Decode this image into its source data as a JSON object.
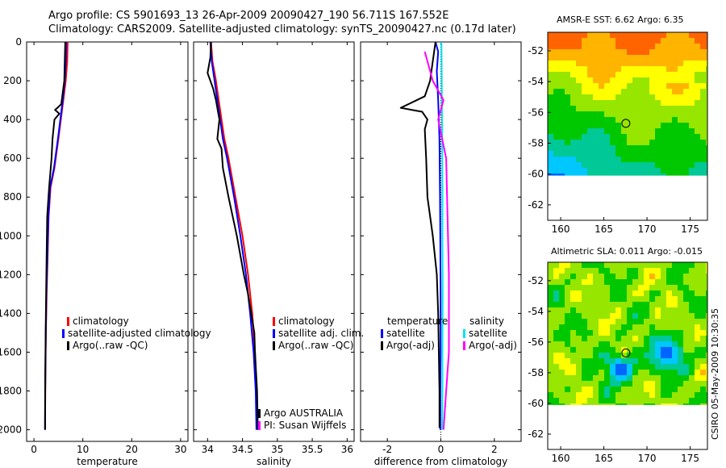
{
  "header": {
    "line1": "Argo profile: CS 5901693_13 26-Apr-2009 20090427_190 56.711S 167.552E",
    "line2": "Climatology: CARS2009. Satellite-adjusted climatology: synTS_20090427.nc (0.17d later)"
  },
  "side_label": "CSIRO 05-May-2009 10:30:35",
  "colors": {
    "climatology": "#ff0000",
    "satellite": "#0000ff",
    "argo": "#000000",
    "satellite_sal": "#00e5ee",
    "argo_sal": "#ff00ff"
  },
  "chart_data": [
    {
      "type": "line",
      "xlabel": "temperature",
      "xlim": [
        -1.5,
        31.5
      ],
      "ylim": [
        2060,
        0
      ],
      "xticks": [
        0,
        10,
        20,
        30
      ],
      "yticks": [
        0,
        200,
        400,
        600,
        800,
        1000,
        1200,
        1400,
        1600,
        1800,
        2000
      ],
      "y_reversed": true,
      "legend": {
        "position": "lower-right",
        "entries": [
          "climatology",
          "satellite-adjusted climatology",
          "Argo(..raw -QC)"
        ]
      },
      "series": [
        {
          "name": "climatology",
          "color": "climatology",
          "x": [
            6.9,
            6.8,
            6.5,
            6.0,
            5.0,
            4.2,
            3.4,
            3.0,
            2.8,
            2.6,
            2.45,
            2.35,
            2.3,
            2.28
          ],
          "y": [
            0,
            100,
            200,
            300,
            500,
            650,
            750,
            900,
            1100,
            1300,
            1500,
            1700,
            1900,
            2000
          ]
        },
        {
          "name": "satellite-adjusted climatology",
          "color": "satellite",
          "x": [
            6.6,
            6.5,
            6.3,
            5.9,
            4.9,
            4.1,
            3.3,
            2.95,
            2.75,
            2.55,
            2.42,
            2.33,
            2.28,
            2.27
          ],
          "y": [
            0,
            100,
            200,
            300,
            500,
            650,
            750,
            900,
            1100,
            1300,
            1500,
            1700,
            1900,
            2000
          ]
        },
        {
          "name": "Argo(..raw -QC)",
          "color": "argo",
          "x": [
            6.4,
            6.3,
            6.2,
            5.8,
            5.6,
            4.8,
            4.3,
            5.2,
            4.2,
            3.8,
            3.6,
            3.1,
            2.7,
            2.6,
            2.5,
            2.4,
            2.3,
            2.28
          ],
          "y": [
            0,
            100,
            200,
            280,
            320,
            340,
            350,
            370,
            400,
            500,
            600,
            750,
            900,
            1100,
            1300,
            1500,
            1800,
            2000
          ]
        }
      ]
    },
    {
      "type": "line",
      "xlabel": "salinity",
      "xlim": [
        33.8,
        36.1
      ],
      "ylim": [
        2060,
        0
      ],
      "xticks": [
        34,
        34.5,
        35,
        35.5,
        36
      ],
      "y_reversed": true,
      "legend": {
        "position": "lower-right",
        "entries": [
          "climatology",
          "satellite adj. clim.",
          "Argo(..raw -QC)"
        ]
      },
      "annotations": [
        "Argo AUSTRALIA",
        "PI: Susan Wijffels"
      ],
      "series": [
        {
          "name": "climatology",
          "color": "climatology",
          "x": [
            34.05,
            34.07,
            34.12,
            34.16,
            34.2,
            34.24,
            34.3,
            34.4,
            34.5,
            34.58,
            34.64,
            34.68,
            34.7,
            34.71
          ],
          "y": [
            0,
            100,
            200,
            300,
            400,
            500,
            600,
            800,
            1000,
            1200,
            1400,
            1600,
            1800,
            2000
          ]
        },
        {
          "name": "satellite adj. clim.",
          "color": "satellite",
          "x": [
            34.04,
            34.06,
            34.1,
            34.14,
            34.18,
            34.22,
            34.28,
            34.38,
            34.47,
            34.55,
            34.61,
            34.66,
            34.69,
            34.7
          ],
          "y": [
            0,
            100,
            200,
            300,
            400,
            500,
            600,
            800,
            1000,
            1200,
            1400,
            1600,
            1800,
            2000
          ]
        },
        {
          "name": "Argo(..raw -QC)",
          "color": "argo",
          "x": [
            34.05,
            34.04,
            34.0,
            34.08,
            34.12,
            34.17,
            34.14,
            34.2,
            34.22,
            34.3,
            34.42,
            34.52,
            34.58,
            34.67,
            34.68,
            34.71,
            34.72
          ],
          "y": [
            0,
            80,
            160,
            240,
            300,
            400,
            500,
            550,
            650,
            800,
            1000,
            1200,
            1300,
            1500,
            1600,
            1800,
            2000
          ]
        }
      ]
    },
    {
      "type": "line",
      "xlabel": "difference from climatology",
      "xlim": [
        -3.0,
        3.0
      ],
      "ylim": [
        2060,
        0
      ],
      "xticks": [
        -2,
        0,
        2
      ],
      "y_reversed": true,
      "reference_line_x": 0,
      "legend": {
        "position": "lower-right",
        "entries": [
          "temperature",
          "satellite",
          "Argo(-adj)",
          "salinity",
          "satellite",
          "Argo(-adj)"
        ]
      },
      "series": [
        {
          "name": "satellite (temperature)",
          "color": "satellite",
          "x": [
            -0.2,
            -0.1,
            -0.15,
            -0.1,
            -0.05,
            -0.03,
            -0.02,
            -0.01,
            -0.01,
            -0.02,
            -0.02
          ],
          "y": [
            0,
            50,
            150,
            300,
            500,
            800,
            1000,
            1300,
            1600,
            1800,
            2000
          ]
        },
        {
          "name": "Argo(-adj) (temperature)",
          "color": "argo",
          "x": [
            -0.2,
            -0.3,
            -0.4,
            -0.6,
            -1.5,
            -0.7,
            -0.5,
            -0.6,
            -0.55,
            -0.5,
            -0.3,
            -0.15,
            -0.1,
            -0.05,
            -0.05
          ],
          "y": [
            0,
            100,
            200,
            280,
            340,
            360,
            400,
            450,
            600,
            800,
            1000,
            1200,
            1400,
            1800,
            1990
          ]
        },
        {
          "name": "satellite (salinity)",
          "color": "satellite_sal",
          "x": [
            0.02,
            0.03,
            0.04,
            0.05,
            0.06,
            0.06,
            0.07,
            0.06,
            0.06,
            0.05
          ],
          "y": [
            0,
            100,
            300,
            500,
            800,
            1000,
            1300,
            1600,
            1800,
            2000
          ]
        },
        {
          "name": "Argo(-adj) (salinity)",
          "color": "argo_sal",
          "x": [
            -0.6,
            -0.5,
            -0.3,
            0.1,
            -0.1,
            0.2,
            0.25,
            0.3,
            0.3,
            0.2,
            0.1
          ],
          "y": [
            50,
            100,
            200,
            300,
            400,
            600,
            900,
            1200,
            1600,
            1800,
            2000
          ]
        }
      ]
    },
    {
      "type": "heatmap",
      "title": "AMSR-E SST: 6.62 Argo: 6.35",
      "xlim": [
        158.5,
        177
      ],
      "ylim": [
        -63,
        -50.8
      ],
      "xticks": [
        160,
        165,
        170,
        175
      ],
      "yticks": [
        -52,
        -54,
        -56,
        -58,
        -60,
        -62
      ],
      "data_bottom": -60.1,
      "marker": {
        "x": 167.55,
        "y": -56.71
      }
    },
    {
      "type": "heatmap",
      "title": "Altimetric SLA: 0.011 Argo: -0.015",
      "xlim": [
        158.5,
        177
      ],
      "ylim": [
        -63,
        -50.8
      ],
      "xticks": [
        160,
        165,
        170,
        175
      ],
      "yticks": [
        -52,
        -54,
        -56,
        -58,
        -60,
        -62
      ],
      "data_bottom": -60.1,
      "marker": {
        "x": 167.55,
        "y": -56.71
      }
    }
  ]
}
